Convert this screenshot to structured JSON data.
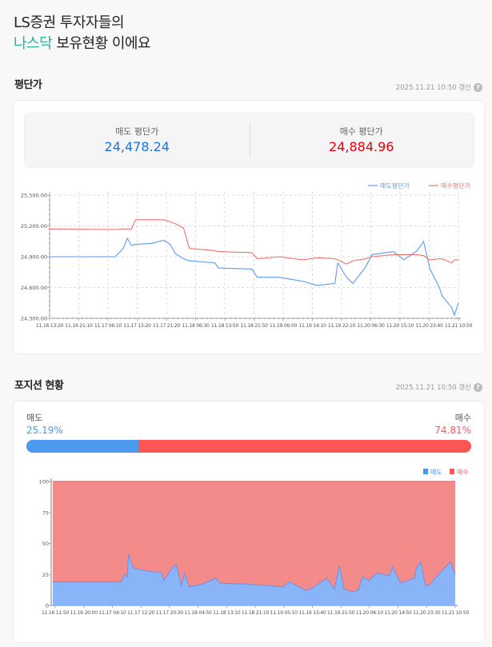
{
  "header": {
    "line1": "LS증권 투자자들의",
    "highlight": "나스닥",
    "line2_rest": " 보유현황 이에요",
    "highlight_color": "#1fb39a"
  },
  "avg_price": {
    "title": "평단가",
    "updated": "2025.11.21 10:50 갱신",
    "help_icon": "question-circle-icon",
    "sell_label": "매도 평단가",
    "sell_value": "24,478.24",
    "sell_color": "#1a73e8",
    "buy_label": "매수 평단가",
    "buy_value": "24,884.96",
    "buy_color": "#e8000b"
  },
  "position": {
    "title": "포지션 현황",
    "updated": "2025.11.21 10:50 갱신",
    "help_icon": "question-circle-icon",
    "sell_label": "매도",
    "sell_pct": "25.19%",
    "buy_label": "매수",
    "buy_pct": "74.81%",
    "sell_fraction": 0.2519,
    "sell_color": "#4b9af0",
    "buy_color": "#fc5656"
  },
  "chart_data": [
    {
      "type": "line",
      "title": "",
      "xlabel": "",
      "ylabel": "",
      "ylim": [
        24300,
        25500
      ],
      "yticks": [
        "25,500.00",
        "25,200.00",
        "24,900.00",
        "24,600.00",
        "24,300.00"
      ],
      "ytick_values": [
        25500,
        25200,
        24900,
        24600,
        24300
      ],
      "xticks": [
        "11.16 13:20",
        "11.16 21:10",
        "11.17 06:10",
        "11.17 13:20",
        "11.17 21:20",
        "11.18 06:30",
        "11.18 13:50",
        "11.18 21:50",
        "11.19 06:00",
        "11.19 14:10",
        "11.19 22:10",
        "11.20 06:30",
        "11.20 15:10",
        "11.20 23:40",
        "11.21 10:50"
      ],
      "grid": true,
      "legend": "top-right",
      "x": [
        "11.16 13:20",
        "11.17 08:10",
        "11.17 10:30",
        "11.17 11:40",
        "11.17 12:50",
        "11.17 14:00",
        "11.17 18:40",
        "11.17 22:10",
        "11.18 00:00",
        "11.18 01:30",
        "11.18 03:50",
        "11.18 05:30",
        "11.18 12:50",
        "11.18 13:50",
        "11.18 23:30",
        "11.19 01:00",
        "11.19 07:20",
        "11.19 14:10",
        "11.19 18:20",
        "11.19 23:20",
        "11.20 00:10",
        "11.20 02:40",
        "11.20 04:30",
        "11.20 08:10",
        "11.20 10:00",
        "11.20 16:10",
        "11.20 19:10",
        "11.20 23:00",
        "11.21 00:50",
        "11.21 02:40",
        "11.21 05:20",
        "11.21 06:10",
        "11.21 09:00",
        "11.21 09:40",
        "11.21 10:50"
      ],
      "series": [
        {
          "name": "매도평단가",
          "color": "#5b9bf0",
          "values": [
            24900,
            24900,
            24980,
            25080,
            25010,
            25020,
            25030,
            25060,
            25020,
            24930,
            24880,
            24860,
            24840,
            24790,
            24780,
            24700,
            24700,
            24660,
            24620,
            24640,
            24840,
            24700,
            24640,
            24800,
            24920,
            24950,
            24870,
            24960,
            25050,
            24780,
            24600,
            24520,
            24400,
            24330,
            24450
          ]
        },
        {
          "name": "매수평단가",
          "color": "#f07070",
          "values": [
            25170,
            25165,
            25170,
            25170,
            25170,
            25260,
            25260,
            25260,
            25240,
            25220,
            25180,
            24980,
            24960,
            24950,
            24940,
            24880,
            24900,
            24870,
            24890,
            24880,
            24870,
            24830,
            24860,
            24880,
            24900,
            24920,
            24920,
            24920,
            24910,
            24870,
            24880,
            24880,
            24840,
            24870,
            24870
          ]
        }
      ]
    },
    {
      "type": "area",
      "stacked": true,
      "title": "",
      "xlabel": "",
      "ylabel": "",
      "ylim": [
        0,
        100
      ],
      "yticks": [
        "100",
        "75",
        "50",
        "25",
        "0"
      ],
      "ytick_values": [
        100,
        75,
        50,
        25,
        0
      ],
      "xticks": [
        "11.16 11:50",
        "11.16 20:00",
        "11.17 04:10",
        "11.17 12:20",
        "11.17 20:30",
        "11.18 04:50",
        "11.18 13:10",
        "11.18 21:10",
        "11.19 05:10",
        "11.19 13:40",
        "11.19 21:50",
        "11.20 06:10",
        "11.20 14:50",
        "11.20 23:30",
        "11.21 10:50"
      ],
      "grid": false,
      "legend": "top-right",
      "x": [
        "11.16 11:50",
        "11.17 08:00",
        "11.17 09:15",
        "11.17 09:50",
        "11.17 10:15",
        "11.17 11:40",
        "11.17 15:15",
        "11.17 17:35",
        "11.17 19:55",
        "11.17 20:40",
        "11.17 23:05",
        "11.18 00:20",
        "11.18 01:50",
        "11.18 02:45",
        "11.18 04:10",
        "11.18 07:50",
        "11.18 12:00",
        "11.18 13:20",
        "11.18 22:40",
        "11.19 03:15",
        "11.19 07:50",
        "11.19 09:50",
        "11.19 14:50",
        "11.19 17:15",
        "11.19 20:50",
        "11.19 23:10",
        "11.20 00:35",
        "11.20 02:00",
        "11.20 04:15",
        "11.20 06:10",
        "11.20 07:25",
        "11.20 09:20",
        "11.20 11:40",
        "11.20 15:25",
        "11.20 16:15",
        "11.20 18:40",
        "11.20 22:50",
        "11.20 23:20",
        "11.21 00:40",
        "11.21 02:00",
        "11.21 03:25",
        "11.21 06:15",
        "11.21 09:25",
        "11.21 10:50"
      ],
      "series": [
        {
          "name": "매도",
          "color": "#8ab4f8",
          "values": [
            19,
            19,
            25,
            23,
            41,
            30,
            28,
            27,
            27,
            20,
            30,
            33,
            16,
            26,
            15,
            17,
            22,
            18,
            17,
            16,
            15,
            19,
            12,
            15,
            22,
            13,
            32,
            13,
            11,
            12,
            23,
            20,
            26,
            24,
            31,
            18,
            22,
            30,
            35,
            16,
            17,
            26,
            35,
            25
          ]
        },
        {
          "name": "매수",
          "color": "#f48b8b",
          "values": [
            81,
            81,
            75,
            77,
            59,
            70,
            72,
            73,
            73,
            80,
            70,
            67,
            84,
            74,
            85,
            83,
            78,
            82,
            83,
            84,
            85,
            81,
            88,
            85,
            78,
            87,
            68,
            87,
            89,
            88,
            77,
            80,
            74,
            76,
            69,
            82,
            78,
            70,
            65,
            84,
            83,
            74,
            65,
            75
          ]
        }
      ]
    }
  ]
}
